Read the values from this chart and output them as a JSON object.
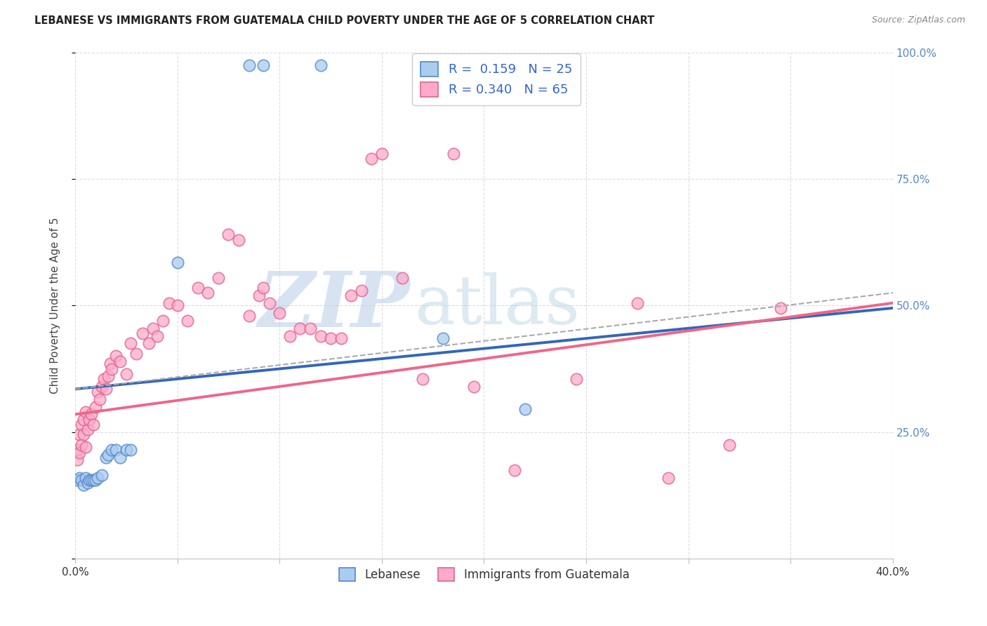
{
  "title": "LEBANESE VS IMMIGRANTS FROM GUATEMALA CHILD POVERTY UNDER THE AGE OF 5 CORRELATION CHART",
  "source": "Source: ZipAtlas.com",
  "ylabel": "Child Poverty Under the Age of 5",
  "xlim": [
    0.0,
    0.4
  ],
  "ylim": [
    0.0,
    1.0
  ],
  "yticks": [
    0.0,
    0.25,
    0.5,
    0.75,
    1.0
  ],
  "ytick_labels": [
    "",
    "25.0%",
    "50.0%",
    "75.0%",
    "100.0%"
  ],
  "xticks": [
    0.0,
    0.05,
    0.1,
    0.15,
    0.2,
    0.25,
    0.3,
    0.35,
    0.4
  ],
  "xtick_labels": [
    "0.0%",
    "",
    "",
    "",
    "",
    "",
    "",
    "",
    "40.0%"
  ],
  "legend_label_blue": "Lebanese",
  "legend_label_pink": "Immigrants from Guatemala",
  "blue_fill": "#aaccee",
  "blue_edge": "#5588cc",
  "pink_fill": "#ffaacc",
  "pink_edge": "#dd6688",
  "blue_line_color": "#3366bb",
  "pink_line_color": "#ee6688",
  "blue_scatter": [
    [
      0.001,
      0.155
    ],
    [
      0.002,
      0.16
    ],
    [
      0.003,
      0.155
    ],
    [
      0.004,
      0.145
    ],
    [
      0.005,
      0.16
    ],
    [
      0.006,
      0.15
    ],
    [
      0.007,
      0.155
    ],
    [
      0.008,
      0.155
    ],
    [
      0.009,
      0.155
    ],
    [
      0.01,
      0.155
    ],
    [
      0.011,
      0.16
    ],
    [
      0.013,
      0.165
    ],
    [
      0.015,
      0.2
    ],
    [
      0.016,
      0.205
    ],
    [
      0.018,
      0.215
    ],
    [
      0.02,
      0.215
    ],
    [
      0.022,
      0.2
    ],
    [
      0.025,
      0.215
    ],
    [
      0.027,
      0.215
    ],
    [
      0.05,
      0.585
    ],
    [
      0.085,
      0.975
    ],
    [
      0.092,
      0.975
    ],
    [
      0.12,
      0.975
    ],
    [
      0.18,
      0.435
    ],
    [
      0.22,
      0.295
    ]
  ],
  "pink_scatter": [
    [
      0.001,
      0.195
    ],
    [
      0.001,
      0.215
    ],
    [
      0.002,
      0.21
    ],
    [
      0.002,
      0.245
    ],
    [
      0.003,
      0.225
    ],
    [
      0.003,
      0.265
    ],
    [
      0.004,
      0.245
    ],
    [
      0.004,
      0.275
    ],
    [
      0.005,
      0.22
    ],
    [
      0.005,
      0.29
    ],
    [
      0.006,
      0.255
    ],
    [
      0.007,
      0.275
    ],
    [
      0.008,
      0.285
    ],
    [
      0.009,
      0.265
    ],
    [
      0.01,
      0.3
    ],
    [
      0.011,
      0.33
    ],
    [
      0.012,
      0.315
    ],
    [
      0.013,
      0.34
    ],
    [
      0.014,
      0.355
    ],
    [
      0.015,
      0.335
    ],
    [
      0.016,
      0.36
    ],
    [
      0.017,
      0.385
    ],
    [
      0.018,
      0.375
    ],
    [
      0.02,
      0.4
    ],
    [
      0.022,
      0.39
    ],
    [
      0.025,
      0.365
    ],
    [
      0.027,
      0.425
    ],
    [
      0.03,
      0.405
    ],
    [
      0.033,
      0.445
    ],
    [
      0.036,
      0.425
    ],
    [
      0.038,
      0.455
    ],
    [
      0.04,
      0.44
    ],
    [
      0.043,
      0.47
    ],
    [
      0.046,
      0.505
    ],
    [
      0.05,
      0.5
    ],
    [
      0.055,
      0.47
    ],
    [
      0.06,
      0.535
    ],
    [
      0.065,
      0.525
    ],
    [
      0.07,
      0.555
    ],
    [
      0.075,
      0.64
    ],
    [
      0.08,
      0.63
    ],
    [
      0.085,
      0.48
    ],
    [
      0.09,
      0.52
    ],
    [
      0.092,
      0.535
    ],
    [
      0.095,
      0.505
    ],
    [
      0.1,
      0.485
    ],
    [
      0.105,
      0.44
    ],
    [
      0.11,
      0.455
    ],
    [
      0.115,
      0.455
    ],
    [
      0.12,
      0.44
    ],
    [
      0.125,
      0.435
    ],
    [
      0.13,
      0.435
    ],
    [
      0.135,
      0.52
    ],
    [
      0.14,
      0.53
    ],
    [
      0.145,
      0.79
    ],
    [
      0.15,
      0.8
    ],
    [
      0.16,
      0.555
    ],
    [
      0.17,
      0.355
    ],
    [
      0.185,
      0.8
    ],
    [
      0.195,
      0.34
    ],
    [
      0.215,
      0.175
    ],
    [
      0.245,
      0.355
    ],
    [
      0.275,
      0.505
    ],
    [
      0.29,
      0.16
    ],
    [
      0.32,
      0.225
    ],
    [
      0.345,
      0.495
    ]
  ],
  "blue_line_x": [
    0.0,
    0.4
  ],
  "blue_line_y": [
    0.335,
    0.495
  ],
  "pink_line_x": [
    0.0,
    0.4
  ],
  "pink_line_y": [
    0.285,
    0.505
  ],
  "dash_line_x": [
    0.0,
    0.4
  ],
  "dash_line_y": [
    0.335,
    0.525
  ],
  "grid_color": "#dddddd",
  "title_fontsize": 10.5,
  "source_fontsize": 9,
  "tick_fontsize": 11,
  "ylabel_fontsize": 11,
  "ytick_color": "#5588cc"
}
